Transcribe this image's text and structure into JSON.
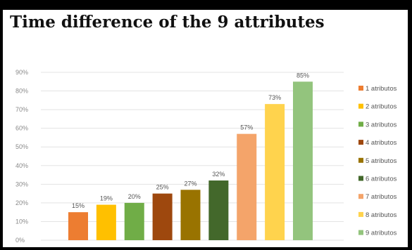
{
  "title": "Time difference of the 9 attributes",
  "chart_data": {
    "type": "bar",
    "title": "Time difference of the 9 attributes",
    "categories": [
      "1 atributos",
      "2 atributos",
      "3 atributos",
      "4 atributos",
      "5 atributos",
      "6 atributos",
      "7 atributos",
      "8 atributos",
      "9 atributos"
    ],
    "values": [
      15,
      19,
      20,
      25,
      27,
      32,
      57,
      73,
      85
    ],
    "data_labels": [
      "15%",
      "19%",
      "20%",
      "25%",
      "27%",
      "32%",
      "57%",
      "73%",
      "85%"
    ],
    "colors": [
      "#ed7d31",
      "#ffc000",
      "#70ad47",
      "#9e480e",
      "#997300",
      "#43682b",
      "#f4a46a",
      "#ffd34d",
      "#93c47d"
    ],
    "ylim": [
      0,
      90
    ],
    "yticks": [
      "0%",
      "10%",
      "20%",
      "30%",
      "40%",
      "50%",
      "60%",
      "70%",
      "80%",
      "90%"
    ],
    "grid": true,
    "legend": "right",
    "xlabel": "",
    "ylabel": ""
  }
}
